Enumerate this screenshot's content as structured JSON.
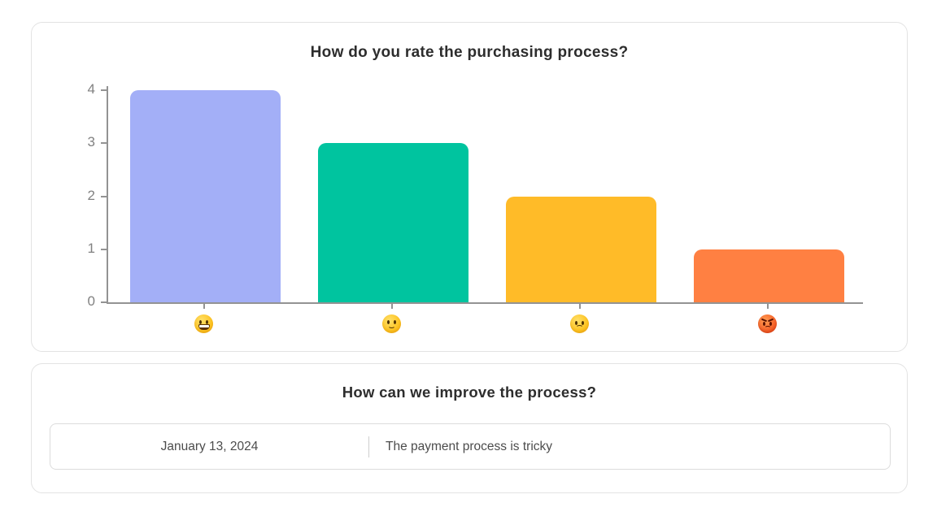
{
  "chart_card": {
    "title": "How do you rate the purchasing process?"
  },
  "chart_data": {
    "type": "bar",
    "title": "How do you rate the purchasing process?",
    "categories": [
      "grinning-face",
      "slightly-smiling-face",
      "frowning-face",
      "angry-face"
    ],
    "category_emojis": [
      "😃",
      "🙂",
      "🙁",
      "😡"
    ],
    "values": [
      4,
      3,
      2,
      1
    ],
    "bar_colors": [
      "#A3AFF7",
      "#00C49F",
      "#FFBB28",
      "#FF8042"
    ],
    "y_ticks": [
      0,
      1,
      2,
      3,
      4
    ],
    "ylim": [
      0,
      4
    ],
    "xlabel": "",
    "ylabel": "",
    "grid": false,
    "legend": false,
    "axis_color": "#939393"
  },
  "feedback_card": {
    "title": "How can we improve the process?",
    "entries": [
      {
        "date": "January 13, 2024",
        "comment": "The payment process is tricky"
      }
    ]
  },
  "colors": {
    "card_border": "#e3e3e3",
    "title_text": "#2d2d2d",
    "tick_text": "#818181",
    "entry_text": "#4c4c4c"
  }
}
